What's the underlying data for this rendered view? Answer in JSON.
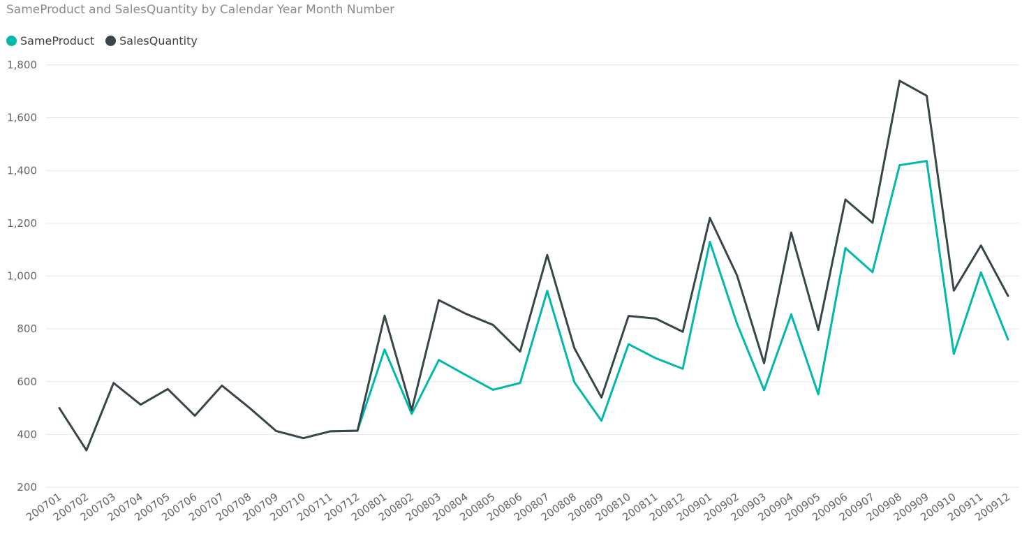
{
  "chart_data": {
    "type": "line",
    "title": "SameProduct and SalesQuantity by Calendar Year Month Number",
    "xlabel": "",
    "ylabel": "",
    "ylim": [
      200,
      1800
    ],
    "yticks": [
      200,
      400,
      600,
      800,
      1000,
      1200,
      1400,
      1600,
      1800
    ],
    "ytick_labels": [
      "200",
      "400",
      "600",
      "800",
      "1,000",
      "1,200",
      "1,400",
      "1,600",
      "1,800"
    ],
    "grid": true,
    "legend_placement": "top-left",
    "categories": [
      "200701",
      "200702",
      "200703",
      "200704",
      "200705",
      "200706",
      "200707",
      "200708",
      "200709",
      "200710",
      "200711",
      "200712",
      "200801",
      "200802",
      "200803",
      "200804",
      "200805",
      "200806",
      "200807",
      "200808",
      "200809",
      "200810",
      "200811",
      "200812",
      "200901",
      "200902",
      "200903",
      "200904",
      "200905",
      "200906",
      "200907",
      "200908",
      "200909",
      "200910",
      "200911",
      "200912"
    ],
    "series": [
      {
        "name": "SameProduct",
        "color": "#01B8AA",
        "values": [
          null,
          null,
          null,
          null,
          null,
          null,
          null,
          null,
          null,
          null,
          412,
          414,
          722,
          478,
          682,
          625,
          569,
          595,
          944,
          598,
          452,
          742,
          689,
          649,
          1130,
          820,
          568,
          855,
          552,
          1106,
          1015,
          1420,
          1436,
          705,
          1014,
          760
        ]
      },
      {
        "name": "SalesQuantity",
        "color": "#374649",
        "values": [
          500,
          340,
          595,
          513,
          572,
          471,
          585,
          502,
          413,
          386,
          412,
          414,
          850,
          492,
          909,
          857,
          815,
          714,
          1080,
          727,
          540,
          849,
          839,
          789,
          1220,
          1003,
          670,
          1165,
          796,
          1290,
          1202,
          1740,
          1683,
          945,
          1116,
          925
        ]
      }
    ]
  }
}
